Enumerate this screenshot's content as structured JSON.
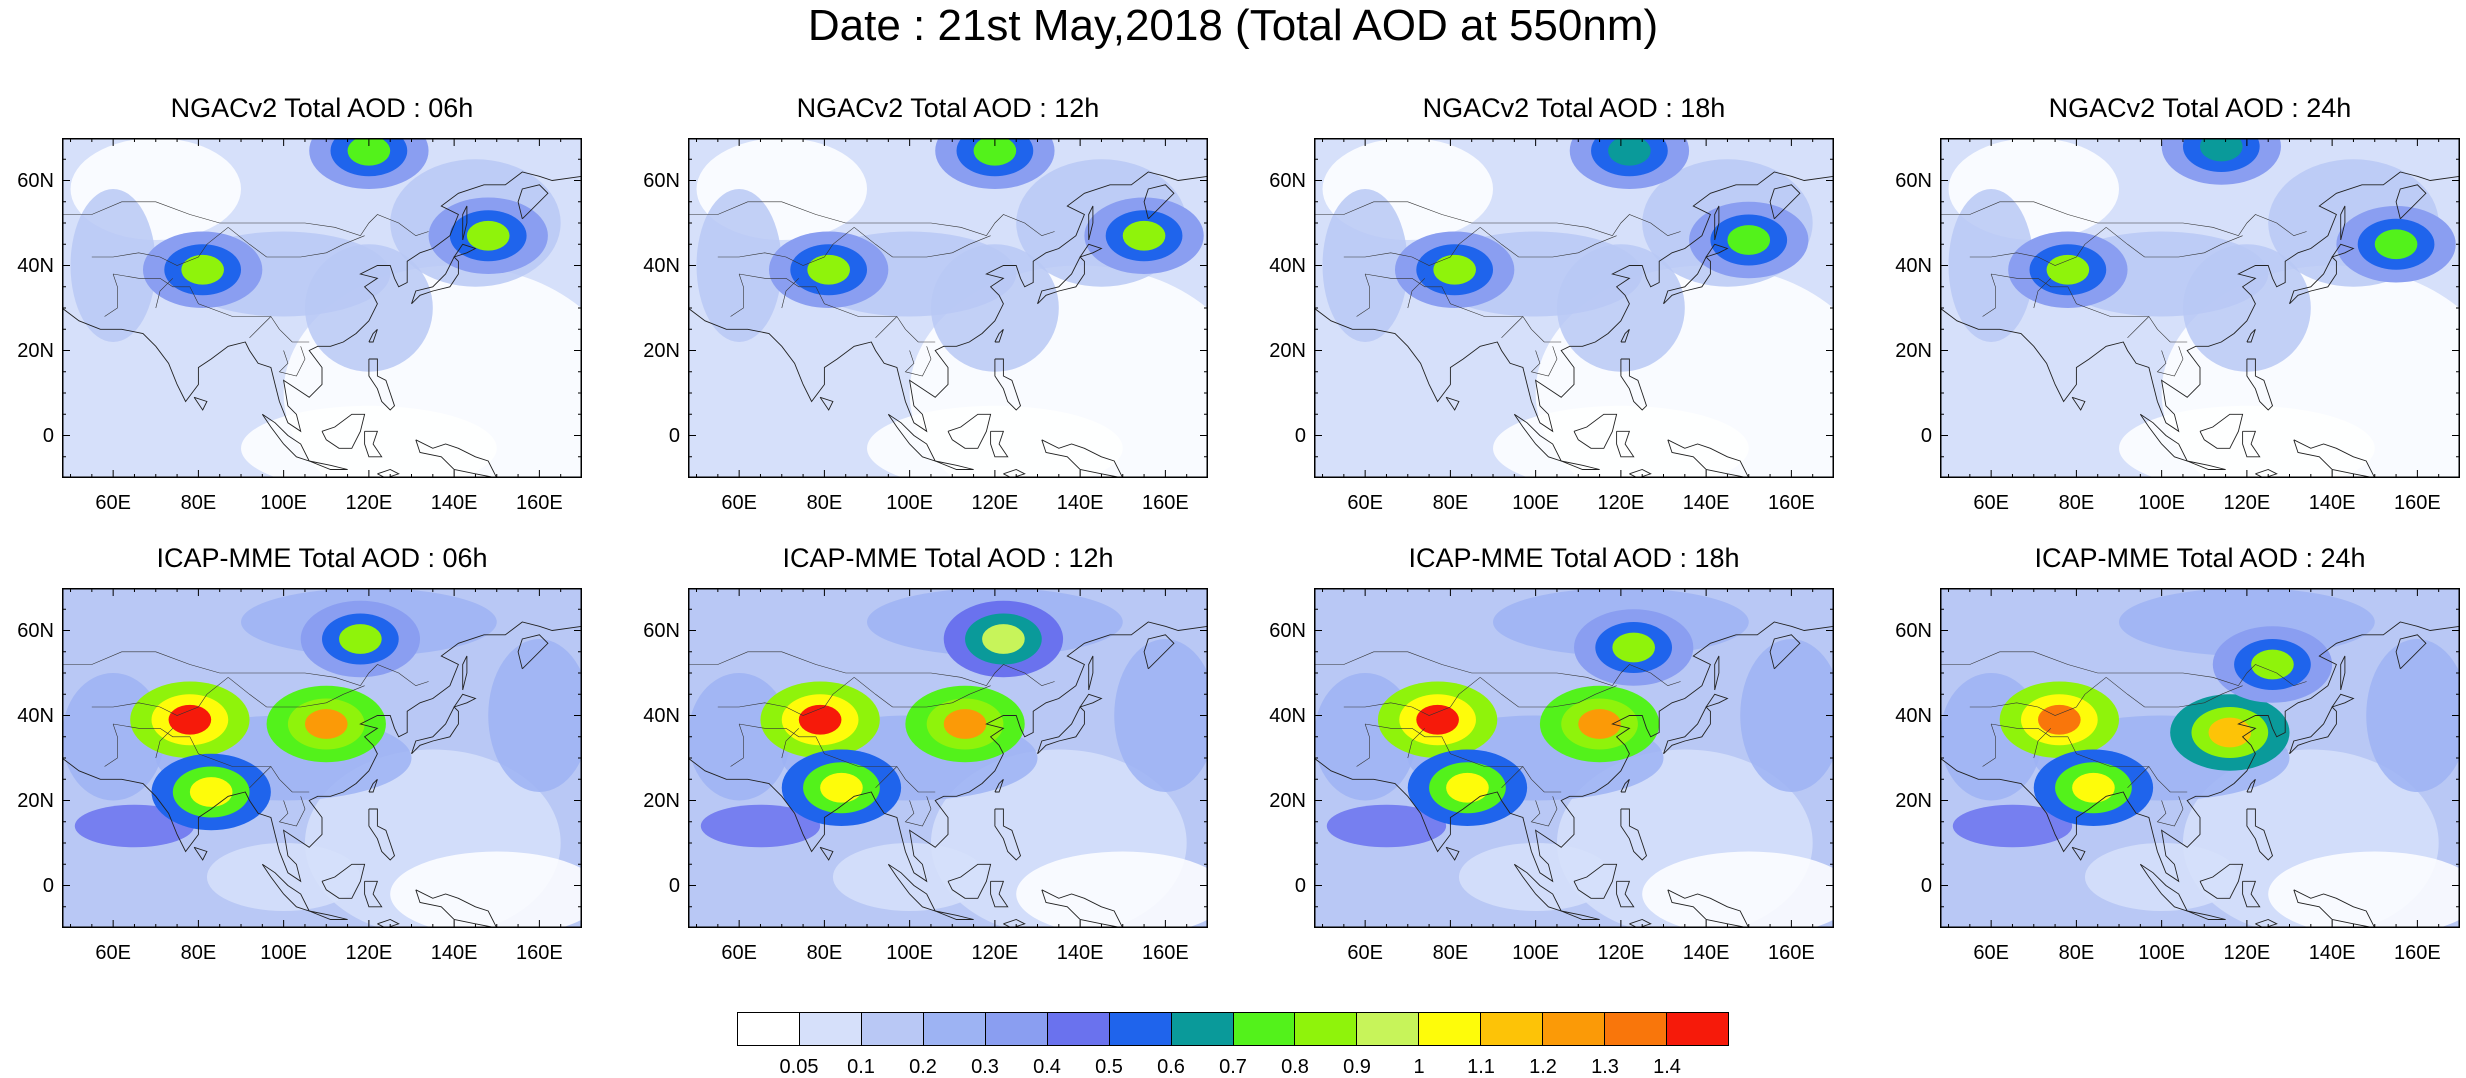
{
  "title": "Date : 21st May,2018 (Total AOD at 550nm)",
  "chart_data": {
    "type": "heatmap",
    "title": "Date : 21st May,2018 (Total AOD at 550nm)",
    "variable": "Total AOD at 550nm",
    "lon_range": [
      48,
      170
    ],
    "lat_range": [
      -10,
      70
    ],
    "x_ticks": [
      "60E",
      "80E",
      "100E",
      "120E",
      "140E",
      "160E"
    ],
    "y_ticks": [
      "60N",
      "40N",
      "20N",
      "0"
    ],
    "colorbar": {
      "levels": [
        "0.05",
        "0.1",
        "0.2",
        "0.3",
        "0.4",
        "0.5",
        "0.6",
        "0.7",
        "0.8",
        "0.9",
        "1",
        "1.1",
        "1.2",
        "1.3",
        "1.4"
      ],
      "colors": [
        "#ffffff",
        "#d6e0fa",
        "#b9c8f5",
        "#9db3f3",
        "#8a9ef1",
        "#6a72ee",
        "#1f64ec",
        "#0a9a9a",
        "#53f21b",
        "#8ff30b",
        "#c7f45a",
        "#fefc0a",
        "#fdc307",
        "#fb9a07",
        "#f9760b",
        "#f61a0a"
      ]
    },
    "panels": [
      {
        "title": "NGACv2 Total AOD : 06h",
        "model": "NGACv2",
        "hour": "06h",
        "features": [
          {
            "lon": 81,
            "lat": 39,
            "aod": 0.8
          },
          {
            "lon": 148,
            "lat": 47,
            "aod": 0.8
          },
          {
            "lon": 120,
            "lat": 67,
            "aod": 0.7
          }
        ]
      },
      {
        "title": "NGACv2 Total AOD : 12h",
        "model": "NGACv2",
        "hour": "12h",
        "features": [
          {
            "lon": 81,
            "lat": 39,
            "aod": 0.8
          },
          {
            "lon": 155,
            "lat": 47,
            "aod": 0.8
          },
          {
            "lon": 120,
            "lat": 67,
            "aod": 0.7
          }
        ]
      },
      {
        "title": "NGACv2 Total AOD : 18h",
        "model": "NGACv2",
        "hour": "18h",
        "features": [
          {
            "lon": 81,
            "lat": 39,
            "aod": 0.8
          },
          {
            "lon": 150,
            "lat": 46,
            "aod": 0.7
          },
          {
            "lon": 122,
            "lat": 67,
            "aod": 0.6
          }
        ]
      },
      {
        "title": "NGACv2 Total AOD : 24h",
        "model": "NGACv2",
        "hour": "24h",
        "features": [
          {
            "lon": 78,
            "lat": 39,
            "aod": 0.8
          },
          {
            "lon": 155,
            "lat": 45,
            "aod": 0.7
          },
          {
            "lon": 114,
            "lat": 68,
            "aod": 0.6
          }
        ]
      },
      {
        "title": "ICAP-MME Total AOD : 06h",
        "model": "ICAP-MME",
        "hour": "06h",
        "features": [
          {
            "lon": 78,
            "lat": 39,
            "aod": 1.4
          },
          {
            "lon": 110,
            "lat": 38,
            "aod": 1.2
          },
          {
            "lon": 83,
            "lat": 22,
            "aod": 1.0
          },
          {
            "lon": 118,
            "lat": 58,
            "aod": 0.8
          }
        ]
      },
      {
        "title": "ICAP-MME Total AOD : 12h",
        "model": "ICAP-MME",
        "hour": "12h",
        "features": [
          {
            "lon": 79,
            "lat": 39,
            "aod": 1.4
          },
          {
            "lon": 113,
            "lat": 38,
            "aod": 1.2
          },
          {
            "lon": 84,
            "lat": 23,
            "aod": 1.0
          },
          {
            "lon": 122,
            "lat": 58,
            "aod": 0.9
          }
        ]
      },
      {
        "title": "ICAP-MME Total AOD : 18h",
        "model": "ICAP-MME",
        "hour": "18h",
        "features": [
          {
            "lon": 77,
            "lat": 39,
            "aod": 1.4
          },
          {
            "lon": 115,
            "lat": 38,
            "aod": 1.2
          },
          {
            "lon": 84,
            "lat": 23,
            "aod": 1.0
          },
          {
            "lon": 123,
            "lat": 56,
            "aod": 0.8
          }
        ]
      },
      {
        "title": "ICAP-MME Total AOD : 24h",
        "model": "ICAP-MME",
        "hour": "24h",
        "features": [
          {
            "lon": 76,
            "lat": 39,
            "aod": 1.3
          },
          {
            "lon": 116,
            "lat": 36,
            "aod": 1.1
          },
          {
            "lon": 84,
            "lat": 23,
            "aod": 1.0
          },
          {
            "lon": 126,
            "lat": 52,
            "aod": 0.8
          }
        ]
      }
    ]
  }
}
